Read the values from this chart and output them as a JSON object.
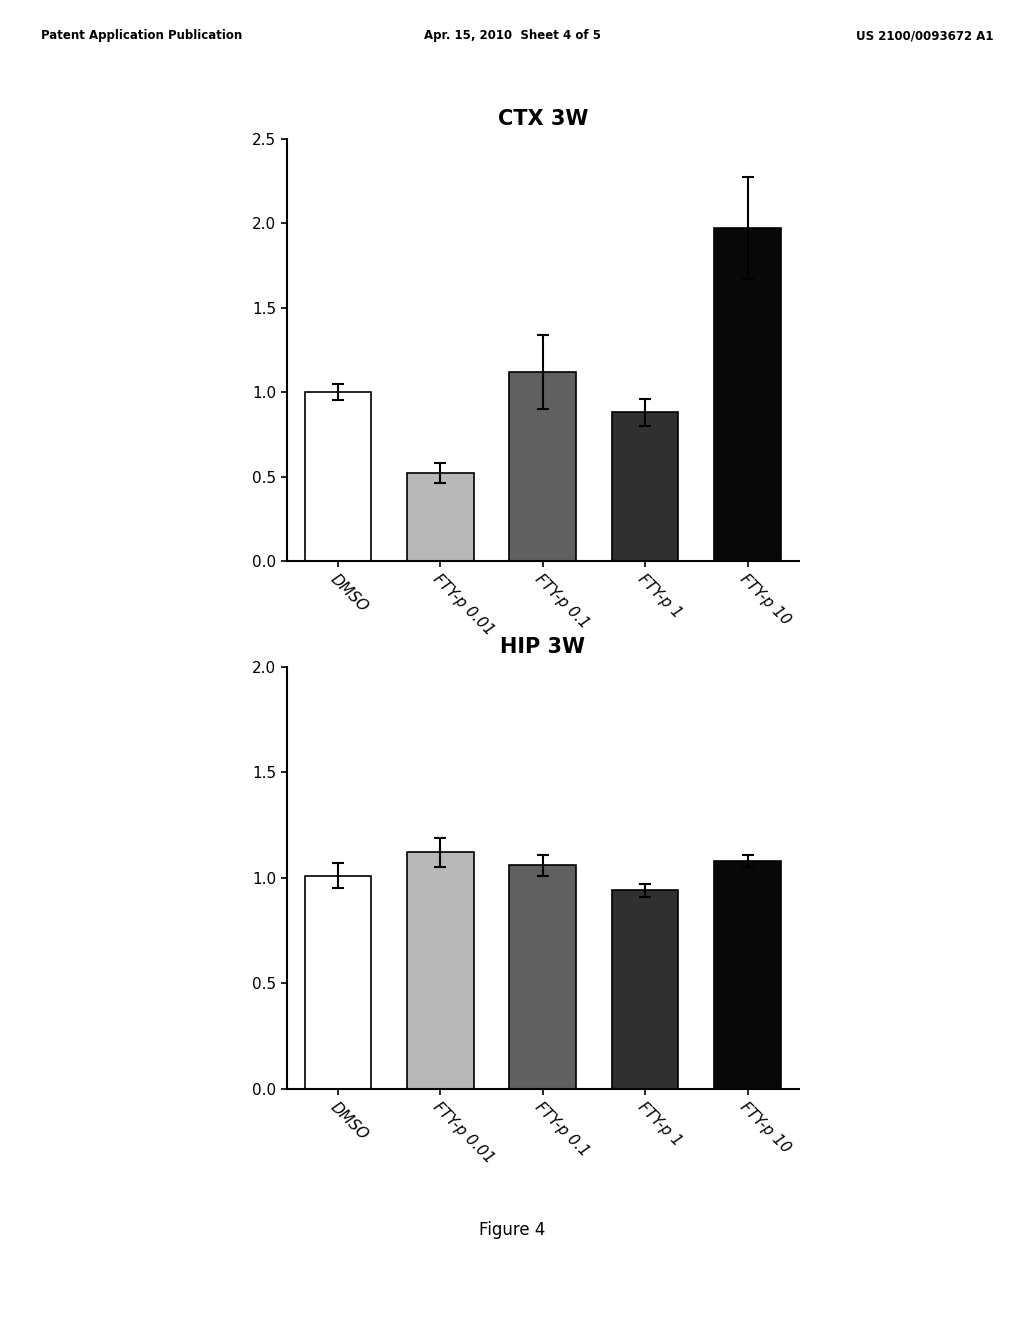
{
  "page_header": {
    "left": "Patent Application Publication",
    "center": "Apr. 15, 2010  Sheet 4 of 5",
    "right": "US 2100/0093672 A1"
  },
  "chart1": {
    "title": "CTX 3W",
    "categories": [
      "DMSO",
      "FTY-p 0.01",
      "FTY-p 0.1",
      "FTY-p 1",
      "FTY-p 10"
    ],
    "values": [
      1.0,
      0.52,
      1.12,
      0.88,
      1.97
    ],
    "errors": [
      0.05,
      0.06,
      0.22,
      0.08,
      0.3
    ],
    "colors": [
      "#ffffff",
      "#b8b8b8",
      "#606060",
      "#303030",
      "#080808"
    ],
    "ylim": [
      0.0,
      2.5
    ],
    "yticks": [
      0.0,
      0.5,
      1.0,
      1.5,
      2.0,
      2.5
    ]
  },
  "chart2": {
    "title": "HIP 3W",
    "categories": [
      "DMSO",
      "FTY-p 0.01",
      "FTY-p 0.1",
      "FTY-p 1",
      "FTY-p 10"
    ],
    "values": [
      1.01,
      1.12,
      1.06,
      0.94,
      1.08
    ],
    "errors": [
      0.06,
      0.07,
      0.05,
      0.03,
      0.03
    ],
    "colors": [
      "#ffffff",
      "#b8b8b8",
      "#606060",
      "#303030",
      "#080808"
    ],
    "ylim": [
      0.0,
      2.0
    ],
    "yticks": [
      0.0,
      0.5,
      1.0,
      1.5,
      2.0
    ]
  },
  "figure_caption": "Figure 4",
  "background_color": "#ffffff",
  "bar_edge_color": "#000000",
  "bar_width": 0.65,
  "title_fontsize": 15,
  "tick_fontsize": 11,
  "label_fontsize": 11,
  "caption_fontsize": 12
}
